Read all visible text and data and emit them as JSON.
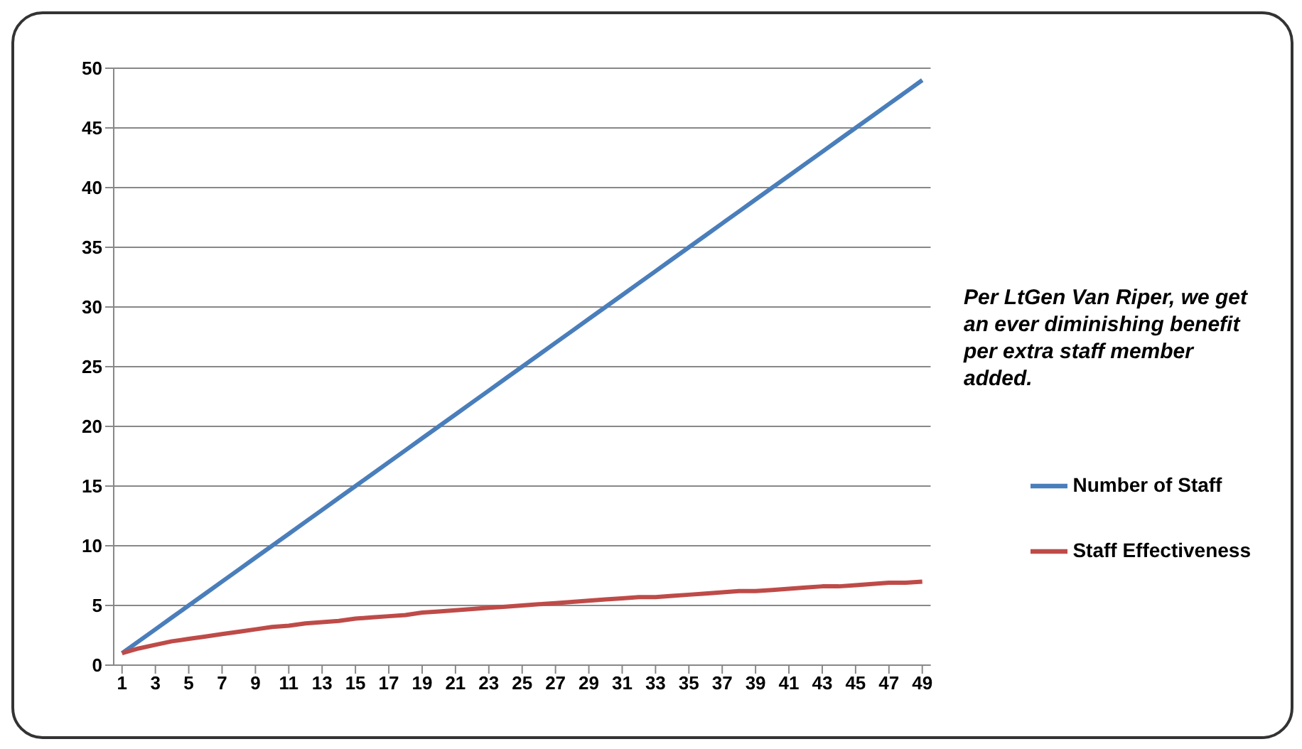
{
  "chart_data": {
    "type": "line",
    "x": [
      1,
      2,
      3,
      4,
      5,
      6,
      7,
      8,
      9,
      10,
      11,
      12,
      13,
      14,
      15,
      16,
      17,
      18,
      19,
      20,
      21,
      22,
      23,
      24,
      25,
      26,
      27,
      28,
      29,
      30,
      31,
      32,
      33,
      34,
      35,
      36,
      37,
      38,
      39,
      40,
      41,
      42,
      43,
      44,
      45,
      46,
      47,
      48,
      49
    ],
    "xlim": [
      0.5,
      49.5
    ],
    "xticks": [
      1,
      3,
      5,
      7,
      9,
      11,
      13,
      15,
      17,
      19,
      21,
      23,
      25,
      27,
      29,
      31,
      33,
      35,
      37,
      39,
      41,
      43,
      45,
      47,
      49
    ],
    "series": [
      {
        "name": "Number of Staff",
        "color": "#4a7ebb",
        "values": [
          1,
          2,
          3,
          4,
          5,
          6,
          7,
          8,
          9,
          10,
          11,
          12,
          13,
          14,
          15,
          16,
          17,
          18,
          19,
          20,
          21,
          22,
          23,
          24,
          25,
          26,
          27,
          28,
          29,
          30,
          31,
          32,
          33,
          34,
          35,
          36,
          37,
          38,
          39,
          40,
          41,
          42,
          43,
          44,
          45,
          46,
          47,
          48,
          49
        ]
      },
      {
        "name": "Staff Effectiveness",
        "color": "#be4b48",
        "values": [
          1.0,
          1.4,
          1.7,
          2.0,
          2.2,
          2.4,
          2.6,
          2.8,
          3.0,
          3.2,
          3.3,
          3.5,
          3.6,
          3.7,
          3.9,
          4.0,
          4.1,
          4.2,
          4.4,
          4.5,
          4.6,
          4.7,
          4.8,
          4.9,
          5.0,
          5.1,
          5.2,
          5.3,
          5.4,
          5.5,
          5.6,
          5.7,
          5.7,
          5.8,
          5.9,
          6.0,
          6.1,
          6.2,
          6.2,
          6.3,
          6.4,
          6.5,
          6.6,
          6.6,
          6.7,
          6.8,
          6.9,
          6.9,
          7.0
        ]
      }
    ],
    "ylim": [
      0,
      50
    ],
    "yticks": [
      0,
      5,
      10,
      15,
      20,
      25,
      30,
      35,
      40,
      45,
      50
    ],
    "grid": "y",
    "legend": "right",
    "marker": "none",
    "line_style": "solid",
    "annotations": [
      "Per LtGen Van Riper, we get an ever diminishing benefit per extra staff member added."
    ]
  }
}
